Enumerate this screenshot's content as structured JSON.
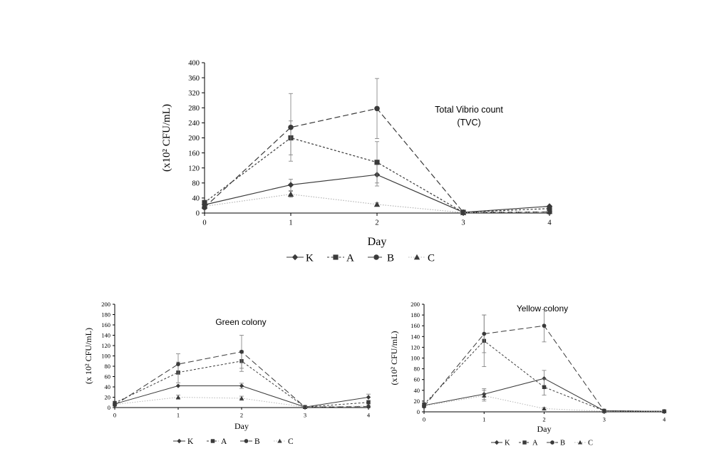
{
  "colors": {
    "series": "#3a3a3a",
    "line_C": "#b5b5b5",
    "axis": "#000000",
    "errorbar": "#7a7a7a"
  },
  "chart_data": [
    {
      "id": "tvc",
      "type": "line",
      "title": "Total Vibrio count",
      "subtitle": "(TVC)",
      "xlabel": "Day",
      "ylabel": "(x10² CFU/mL)",
      "x": [
        0,
        1,
        2,
        3,
        4
      ],
      "xlim": [
        0,
        4
      ],
      "ylim": [
        0,
        400
      ],
      "yticks": [
        0,
        40,
        80,
        120,
        160,
        200,
        240,
        280,
        320,
        360,
        400
      ],
      "grid": false,
      "legend_position": "bottom",
      "series": [
        {
          "name": "K",
          "marker": "diamond",
          "dash": "solid",
          "values": [
            22,
            75,
            102,
            2,
            18
          ],
          "errors": [
            0,
            15,
            30,
            0,
            0
          ]
        },
        {
          "name": "A",
          "marker": "square",
          "dash": "short",
          "values": [
            28,
            200,
            135,
            2,
            12
          ],
          "errors": [
            0,
            45,
            55,
            0,
            0
          ]
        },
        {
          "name": "B",
          "marker": "circle",
          "dash": "long",
          "values": [
            15,
            228,
            278,
            2,
            3
          ],
          "errors": [
            0,
            90,
            80,
            0,
            0
          ]
        },
        {
          "name": "C",
          "marker": "triangle",
          "dash": "dot",
          "values": [
            18,
            50,
            23,
            1,
            4
          ],
          "errors": [
            0,
            8,
            4,
            0,
            0
          ]
        }
      ]
    },
    {
      "id": "green",
      "type": "line",
      "title": "Green colony",
      "xlabel": "Day",
      "ylabel": "(x 10² CFU/mL)",
      "x": [
        0,
        1,
        2,
        3,
        4
      ],
      "xlim": [
        0,
        4
      ],
      "ylim": [
        0,
        200
      ],
      "yticks": [
        0,
        20,
        40,
        60,
        80,
        100,
        120,
        140,
        160,
        180,
        200
      ],
      "grid": false,
      "legend_position": "bottom",
      "series": [
        {
          "name": "K",
          "marker": "diamond",
          "dash": "solid",
          "values": [
            7,
            42,
            42,
            1,
            20
          ],
          "errors": [
            0,
            0,
            5,
            0,
            6
          ]
        },
        {
          "name": "A",
          "marker": "square",
          "dash": "short",
          "values": [
            9,
            68,
            90,
            1,
            10
          ],
          "errors": [
            0,
            20,
            20,
            0,
            0
          ]
        },
        {
          "name": "B",
          "marker": "circle",
          "dash": "long",
          "values": [
            5,
            84,
            108,
            1,
            2
          ],
          "errors": [
            0,
            20,
            32,
            0,
            0
          ]
        },
        {
          "name": "C",
          "marker": "triangle",
          "dash": "dot",
          "values": [
            6,
            20,
            18,
            1,
            3
          ],
          "errors": [
            0,
            4,
            4,
            0,
            0
          ]
        }
      ]
    },
    {
      "id": "yellow",
      "type": "line",
      "title": "Yellow  colony",
      "xlabel": "Day",
      "ylabel": "(x10² CFU/mL)",
      "x": [
        0,
        1,
        2,
        3,
        4
      ],
      "xlim": [
        0,
        4
      ],
      "ylim": [
        0,
        200
      ],
      "yticks": [
        0,
        20,
        40,
        60,
        80,
        100,
        120,
        140,
        160,
        180,
        200
      ],
      "grid": false,
      "legend_position": "bottom",
      "series": [
        {
          "name": "K",
          "marker": "diamond",
          "dash": "solid",
          "values": [
            12,
            33,
            62,
            2,
            1
          ],
          "errors": [
            0,
            10,
            15,
            0,
            0
          ]
        },
        {
          "name": "A",
          "marker": "square",
          "dash": "short",
          "values": [
            14,
            132,
            46,
            2,
            1
          ],
          "errors": [
            0,
            48,
            15,
            0,
            0
          ]
        },
        {
          "name": "B",
          "marker": "circle",
          "dash": "long",
          "values": [
            10,
            145,
            160,
            2,
            1
          ],
          "errors": [
            0,
            35,
            30,
            0,
            0
          ]
        },
        {
          "name": "C",
          "marker": "triangle",
          "dash": "dot",
          "values": [
            11,
            30,
            6,
            1,
            1
          ],
          "errors": [
            0,
            10,
            2,
            0,
            0
          ]
        }
      ]
    }
  ]
}
